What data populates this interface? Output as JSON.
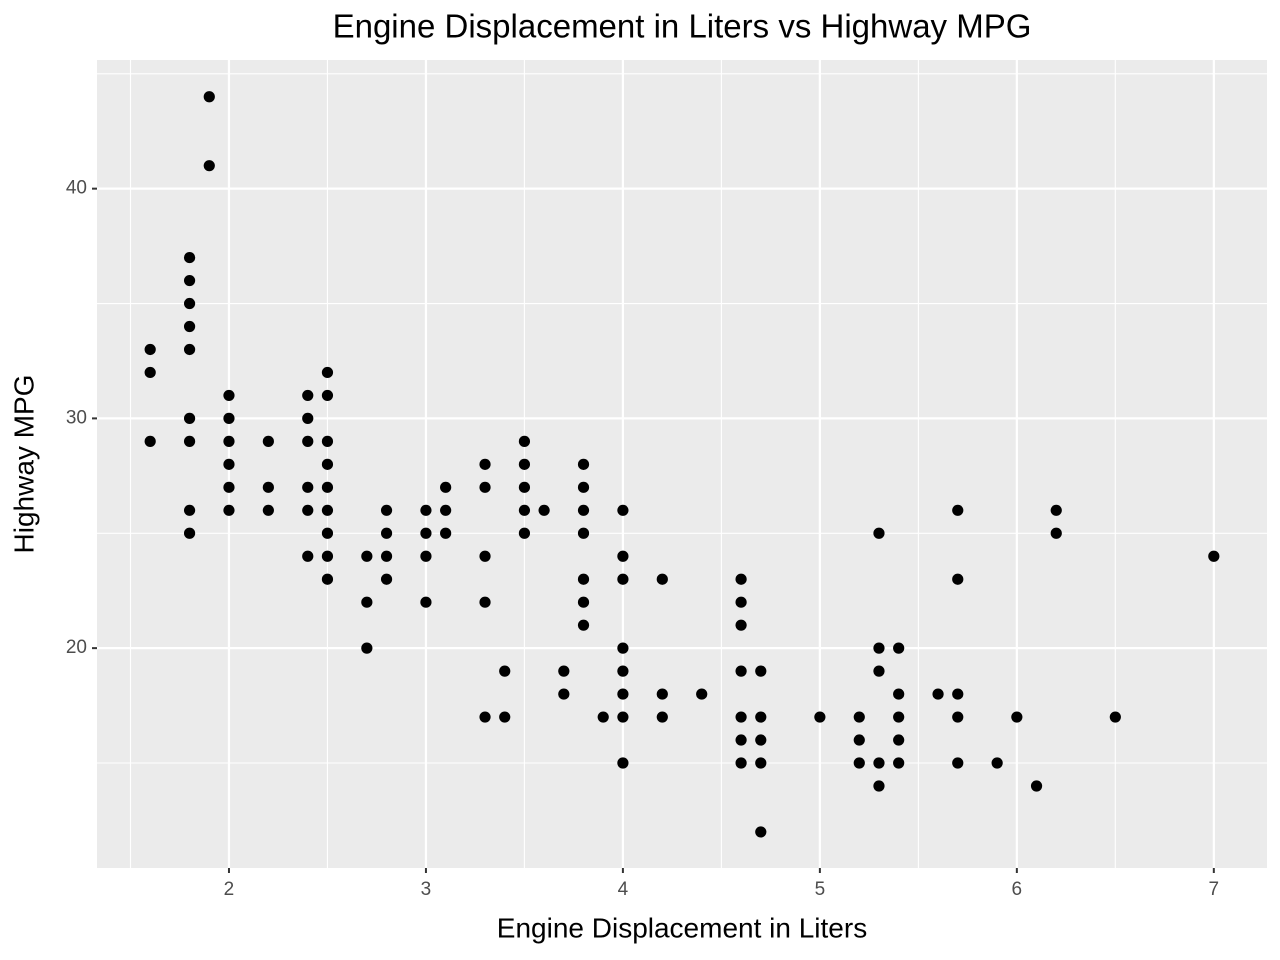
{
  "chart_data": {
    "type": "scatter",
    "title": "Engine Displacement in Liters vs Highway MPG",
    "xlabel": "Engine Displacement in Liters",
    "ylabel": "Highway MPG",
    "color": "#000000",
    "grid": true,
    "x": [
      1.6,
      1.6,
      1.6,
      1.8,
      1.8,
      1.8,
      1.8,
      1.8,
      1.8,
      1.8,
      1.8,
      1.8,
      1.9,
      1.9,
      2.0,
      2.0,
      2.0,
      2.0,
      2.0,
      2.0,
      2.2,
      2.2,
      2.2,
      2.4,
      2.4,
      2.4,
      2.4,
      2.4,
      2.4,
      2.5,
      2.5,
      2.5,
      2.5,
      2.5,
      2.5,
      2.5,
      2.5,
      2.5,
      2.7,
      2.7,
      2.7,
      2.8,
      2.8,
      2.8,
      2.8,
      3.0,
      3.0,
      3.0,
      3.0,
      3.1,
      3.1,
      3.1,
      3.3,
      3.3,
      3.3,
      3.3,
      3.3,
      3.4,
      3.4,
      3.5,
      3.5,
      3.5,
      3.5,
      3.5,
      3.6,
      3.7,
      3.7,
      3.8,
      3.8,
      3.8,
      3.8,
      3.8,
      3.8,
      3.8,
      3.9,
      4.0,
      4.0,
      4.0,
      4.0,
      4.0,
      4.0,
      4.0,
      4.0,
      4.2,
      4.2,
      4.2,
      4.4,
      4.6,
      4.6,
      4.6,
      4.6,
      4.6,
      4.6,
      4.6,
      4.7,
      4.7,
      4.7,
      4.7,
      4.7,
      5.0,
      5.2,
      5.2,
      5.2,
      5.3,
      5.3,
      5.3,
      5.3,
      5.3,
      5.4,
      5.4,
      5.4,
      5.4,
      5.4,
      5.6,
      5.7,
      5.7,
      5.7,
      5.7,
      5.7,
      5.9,
      6.0,
      6.1,
      6.2,
      6.2,
      6.5,
      7.0
    ],
    "values": [
      33,
      32,
      29,
      37,
      36,
      35,
      34,
      33,
      30,
      29,
      26,
      25,
      44,
      41,
      31,
      30,
      29,
      28,
      27,
      26,
      29,
      27,
      26,
      31,
      30,
      29,
      27,
      26,
      24,
      32,
      31,
      29,
      28,
      27,
      26,
      25,
      24,
      23,
      24,
      22,
      20,
      26,
      25,
      24,
      23,
      26,
      25,
      24,
      22,
      27,
      26,
      25,
      28,
      27,
      24,
      22,
      17,
      19,
      17,
      29,
      28,
      27,
      26,
      25,
      26,
      19,
      18,
      28,
      27,
      26,
      25,
      23,
      22,
      21,
      17,
      26,
      24,
      23,
      20,
      19,
      18,
      17,
      15,
      23,
      18,
      17,
      18,
      23,
      22,
      21,
      19,
      17,
      16,
      15,
      19,
      17,
      16,
      15,
      12,
      17,
      17,
      16,
      15,
      25,
      20,
      19,
      15,
      14,
      20,
      18,
      17,
      16,
      15,
      18,
      26,
      23,
      18,
      17,
      15,
      15,
      17,
      14,
      26,
      25,
      17,
      24
    ],
    "xlim": [
      1.33,
      7.27
    ],
    "xticks": [
      2,
      3,
      4,
      5,
      6,
      7
    ],
    "ylim": [
      10.43,
      45.6
    ],
    "yticks": [
      20,
      30,
      40
    ]
  }
}
